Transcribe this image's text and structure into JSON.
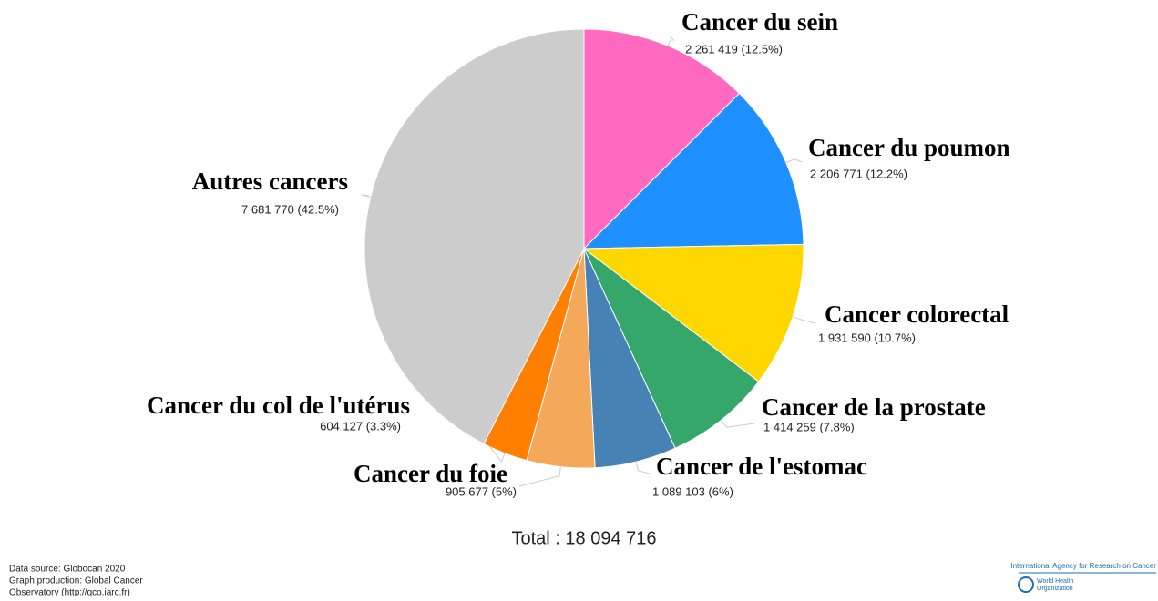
{
  "chart_data": {
    "type": "pie",
    "categories": [
      "Cancer du sein",
      "Cancer du poumon",
      "Cancer colorectal",
      "Cancer de la prostate",
      "Cancer de l'estomac",
      "Cancer du foie",
      "Cancer du col de l'utérus",
      "Autres cancers"
    ],
    "values": [
      2261419,
      2206771,
      1931590,
      1414259,
      1089103,
      905677,
      604127,
      7681770
    ],
    "value_labels": [
      "2 261 419 (12.5%)",
      "2 206 771 (12.2%)",
      "1 931 590 (10.7%)",
      "1 414 259 (7.8%)",
      "1 089 103 (6%)",
      "905 677 (5%)",
      "604 127 (3.3%)",
      "7 681 770 (42.5%)"
    ],
    "colors": [
      "#ff69c0",
      "#1e90ff",
      "#ffd700",
      "#36a76b",
      "#4682b4",
      "#f4a85a",
      "#ff7f00",
      "#cccccc"
    ],
    "total_label": "Total : 18 094 716"
  },
  "footer": {
    "lines": [
      "Data source: Globocan 2020",
      "Graph production: Global Cancer",
      "Observatory (http://gco.iarc.fr)"
    ],
    "logo_top": "International Agency for Research on Cancer",
    "logo_bottom": [
      "World Health",
      "Organization"
    ]
  }
}
